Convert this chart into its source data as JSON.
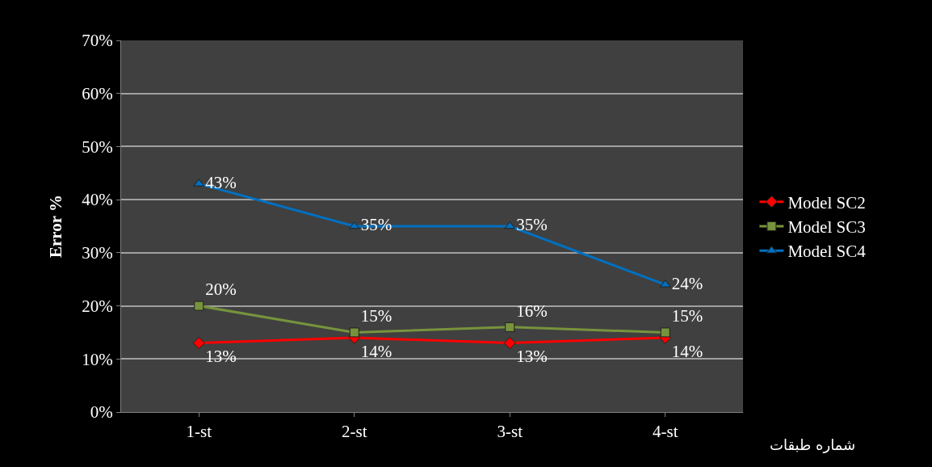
{
  "chart_data": {
    "type": "line",
    "ylabel": "Error %",
    "xlabel": "شماره طبقات",
    "categories": [
      "1-st",
      "2-st",
      "3-st",
      "4-st"
    ],
    "series": [
      {
        "name": "Model SC2",
        "color": "#ff0000",
        "marker": "diamond",
        "values": [
          13,
          14,
          13,
          14
        ],
        "value_labels": [
          "13%",
          "14%",
          "13%",
          "14%"
        ]
      },
      {
        "name": "Model SC3",
        "color": "#77933c",
        "marker": "square",
        "values": [
          20,
          15,
          16,
          15
        ],
        "value_labels": [
          "20%",
          "15%",
          "16%",
          "15%"
        ]
      },
      {
        "name": "Model SC4",
        "color": "#0070c0",
        "marker": "triangle",
        "values": [
          43,
          35,
          35,
          24
        ],
        "value_labels": [
          "43%",
          "35%",
          "35%",
          "24%"
        ]
      }
    ],
    "ylim": [
      0,
      70
    ],
    "yticks": [
      {
        "value": 0,
        "label": "0%"
      },
      {
        "value": 10,
        "label": "10%"
      },
      {
        "value": 20,
        "label": "20%"
      },
      {
        "value": 30,
        "label": "30%"
      },
      {
        "value": 40,
        "label": "40%"
      },
      {
        "value": 50,
        "label": "50%"
      },
      {
        "value": 60,
        "label": "60%"
      },
      {
        "value": 70,
        "label": "70%"
      }
    ],
    "grid": "y",
    "legend": "right",
    "line_style": "solid"
  }
}
